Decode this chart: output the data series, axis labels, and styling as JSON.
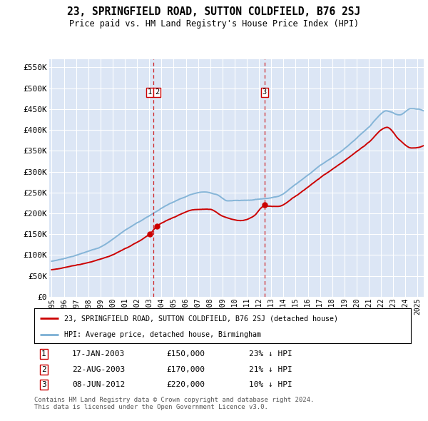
{
  "title": "23, SPRINGFIELD ROAD, SUTTON COLDFIELD, B76 2SJ",
  "subtitle": "Price paid vs. HM Land Registry's House Price Index (HPI)",
  "ylabel_ticks": [
    "£0",
    "£50K",
    "£100K",
    "£150K",
    "£200K",
    "£250K",
    "£300K",
    "£350K",
    "£400K",
    "£450K",
    "£500K",
    "£550K"
  ],
  "ylabel_values": [
    0,
    50000,
    100000,
    150000,
    200000,
    250000,
    300000,
    350000,
    400000,
    450000,
    500000,
    550000
  ],
  "ylim": [
    0,
    570000
  ],
  "xlim_start": 1994.8,
  "xlim_end": 2025.5,
  "plot_bg_color": "#dce6f5",
  "grid_color": "#ffffff",
  "red_line_color": "#cc0000",
  "blue_line_color": "#7bafd4",
  "sale_marker_color": "#cc0000",
  "vline_color": "#cc0000",
  "legend_label_red": "23, SPRINGFIELD ROAD, SUTTON COLDFIELD, B76 2SJ (detached house)",
  "legend_label_blue": "HPI: Average price, detached house, Birmingham",
  "sales": [
    {
      "num": 1,
      "date": "17-JAN-2003",
      "price": 150000,
      "year": 2003.05,
      "label": "1"
    },
    {
      "num": 2,
      "date": "22-AUG-2003",
      "price": 170000,
      "year": 2003.65,
      "label": "2"
    },
    {
      "num": 3,
      "date": "08-JUN-2012",
      "price": 220000,
      "year": 2012.45,
      "label": "3"
    }
  ],
  "vline_x1": 2003.35,
  "vline_x2": 2012.45,
  "footer": "Contains HM Land Registry data © Crown copyright and database right 2024.\nThis data is licensed under the Open Government Licence v3.0.",
  "table_rows": [
    {
      "num": "1",
      "date": "17-JAN-2003",
      "price": "£150,000",
      "hpi": "23% ↓ HPI"
    },
    {
      "num": "2",
      "date": "22-AUG-2003",
      "price": "£170,000",
      "hpi": "21% ↓ HPI"
    },
    {
      "num": "3",
      "date": "08-JUN-2012",
      "price": "£220,000",
      "hpi": "10% ↓ HPI"
    }
  ]
}
